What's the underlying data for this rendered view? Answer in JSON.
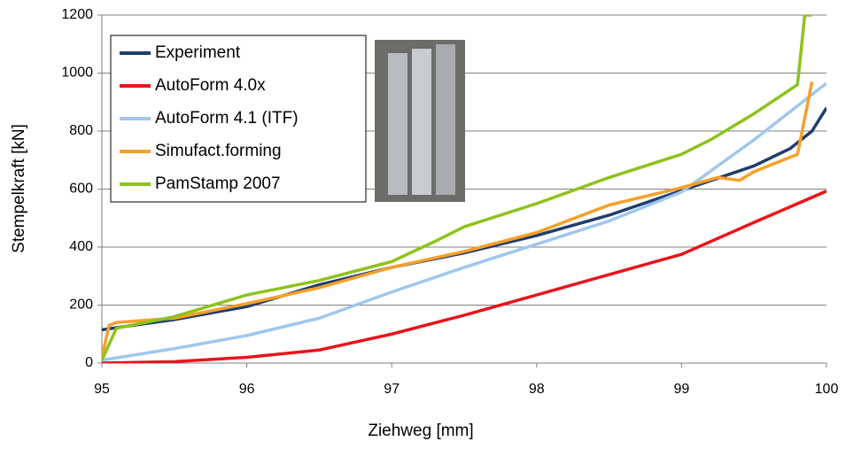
{
  "chart_data": {
    "type": "line",
    "x_label": "Ziehweg [mm]",
    "y_label": "Stempelkraft [kN]",
    "xlim": [
      95,
      100
    ],
    "xticks": [
      95,
      96,
      97,
      98,
      99,
      100
    ],
    "ylim": [
      0,
      1200
    ],
    "yticks": [
      0,
      200,
      400,
      600,
      800,
      1000,
      1200
    ],
    "grid": true,
    "legend": "upper left",
    "series": [
      {
        "name": "Experiment",
        "color": "#1f3d6e",
        "x": [
          95,
          95.5,
          96,
          96.5,
          97,
          97.5,
          98,
          98.5,
          99,
          99.5,
          99.75,
          99.9,
          100
        ],
        "values": [
          115,
          150,
          195,
          270,
          330,
          380,
          440,
          510,
          595,
          680,
          740,
          800,
          880
        ]
      },
      {
        "name": "AutoForm 4.0x",
        "color": "#e8141c",
        "x": [
          95,
          95.5,
          96,
          96.5,
          97,
          97.5,
          98,
          98.5,
          99,
          99.5,
          100
        ],
        "values": [
          0,
          5,
          20,
          45,
          100,
          165,
          235,
          305,
          375,
          485,
          593
        ]
      },
      {
        "name": "AutoForm 4.1 (ITF)",
        "color": "#9fc7ee",
        "x": [
          95,
          95.5,
          96,
          96.5,
          97,
          97.5,
          98,
          98.5,
          99,
          99.5,
          100
        ],
        "values": [
          10,
          50,
          95,
          155,
          245,
          330,
          410,
          490,
          590,
          770,
          965
        ]
      },
      {
        "name": "Simufact.forming",
        "color": "#f7a02a",
        "x": [
          95,
          95.05,
          95.1,
          95.5,
          96,
          96.5,
          97,
          97.5,
          98,
          98.5,
          99,
          99.25,
          99.4,
          99.5,
          99.8,
          99.9
        ],
        "values": [
          20,
          130,
          140,
          155,
          205,
          260,
          330,
          385,
          450,
          545,
          605,
          640,
          630,
          660,
          720,
          970
        ]
      },
      {
        "name": "PamStamp 2007",
        "color": "#8ec21c",
        "x": [
          95,
          95.1,
          95.5,
          96,
          96.5,
          97,
          97.3,
          97.5,
          98,
          98.5,
          99,
          99.2,
          99.5,
          99.8,
          99.85,
          99.9
        ],
        "values": [
          10,
          120,
          160,
          235,
          285,
          350,
          420,
          470,
          550,
          640,
          720,
          770,
          860,
          960,
          1200,
          1200
        ]
      }
    ]
  }
}
